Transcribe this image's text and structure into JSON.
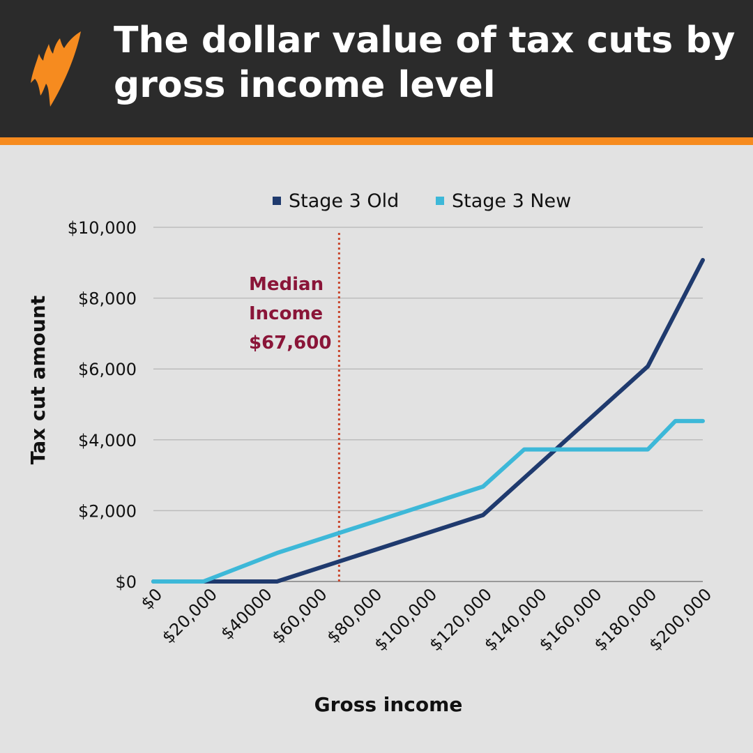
{
  "header": {
    "title": "The dollar value of tax cuts by gross income level"
  },
  "colors": {
    "old": "#1f3a6e",
    "new": "#3db8d8",
    "median": "#c9452b",
    "accent": "#f68b1f"
  },
  "chart_data": {
    "type": "line",
    "title": "The dollar value of tax cuts by gross income level",
    "xlabel": "Gross income",
    "ylabel": "Tax cut amount",
    "xlim": [
      0,
      200000
    ],
    "ylim": [
      0,
      10000
    ],
    "x_tick_labels": [
      "$0",
      "$20,000",
      "$40000",
      "$60,000",
      "$80,000",
      "$100,000",
      "$120,000",
      "$140,000",
      "$160,000",
      "$180,000",
      "$200,000"
    ],
    "y_tick_labels": [
      "$0",
      "$2,000",
      "$4,000",
      "$6,000",
      "$8,000",
      "$10,000"
    ],
    "legend": {
      "placement": "top",
      "entries": [
        "Stage 3 Old",
        "Stage 3 New"
      ]
    },
    "grid": true,
    "series": [
      {
        "name": "Stage 3 Old",
        "points": [
          [
            0,
            0
          ],
          [
            18200,
            0
          ],
          [
            45000,
            0
          ],
          [
            120000,
            1875
          ],
          [
            180000,
            6075
          ],
          [
            200000,
            9075
          ]
        ]
      },
      {
        "name": "Stage 3 New",
        "points": [
          [
            0,
            0
          ],
          [
            18200,
            0
          ],
          [
            45000,
            804
          ],
          [
            120000,
            2679
          ],
          [
            135000,
            3729
          ],
          [
            180000,
            3729
          ],
          [
            190000,
            4529
          ],
          [
            200000,
            4529
          ]
        ]
      }
    ],
    "annotation": {
      "x": 67600,
      "lines": [
        "Median",
        "Income",
        "$67,600"
      ]
    }
  }
}
